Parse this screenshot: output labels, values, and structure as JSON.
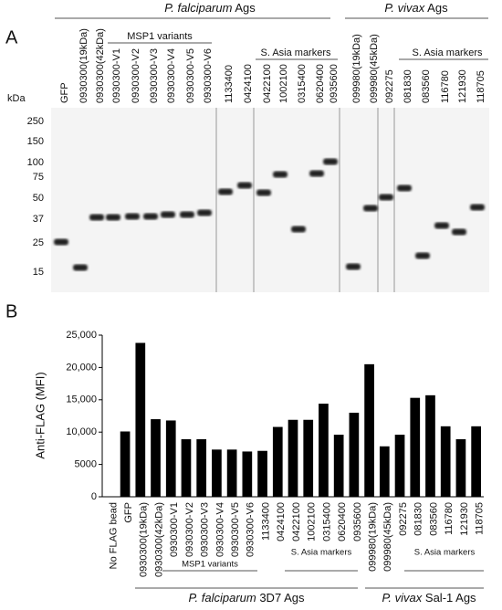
{
  "blot": {
    "panel_label": "A",
    "kda_label": "kDa",
    "kda_markers": [
      "250",
      "150",
      "100",
      "75",
      "50",
      "37",
      "25",
      "15"
    ],
    "lanes": [
      "GFP",
      "0930300(19kDa)",
      "0930300(42kDa)",
      "0930300-V1",
      "0930300-V2",
      "0930300-V3",
      "0930300-V4",
      "0930300-V5",
      "0930300-V6",
      "1133400",
      "0424100",
      "0422100",
      "1002100",
      "0315400",
      "0620400",
      "0935600",
      "099980(19kDa)",
      "099980(45kDa)",
      "092275",
      "081830",
      "083560",
      "116780",
      "121930",
      "118705"
    ],
    "groups": [
      {
        "species": "P. falciparum",
        "suffix": "Ags"
      },
      {
        "species": "P. vivax",
        "suffix": "Ags"
      }
    ],
    "subgroups": [
      "MSP1 variants",
      "S. Asia markers",
      "S. Asia markers"
    ]
  },
  "chart_data": {
    "type": "bar",
    "panel_label": "B",
    "y_label": "Anti-FLAG (MFI)",
    "categories": [
      "No FLAG bead",
      "GFP",
      "0930300(19kDa)",
      "0930300(42kDa)",
      "0930300-V1",
      "0930300-V2",
      "0930300-V3",
      "0930300-V4",
      "0930300-V5",
      "0930300-V6",
      "1133400",
      "0424100",
      "0422100",
      "1002100",
      "0315400",
      "0620400",
      "0935600",
      "099980(19kDa)",
      "099980(45kDa)",
      "092275",
      "081830",
      "083560",
      "116780",
      "121930",
      "118705"
    ],
    "values": [
      50,
      10100,
      23800,
      12000,
      11800,
      8900,
      8900,
      7300,
      7300,
      7000,
      7100,
      10800,
      11900,
      11900,
      14400,
      9600,
      13000,
      20500,
      7800,
      9600,
      15300,
      15700,
      10900,
      8900,
      10900
    ],
    "color": "#000000",
    "ylim": [
      0,
      25000
    ],
    "yticks": [
      0,
      5000,
      {
        "value": 10000,
        "label": "10,000"
      },
      {
        "value": 15000,
        "label": "15,000"
      },
      {
        "value": 20000,
        "label": "20,000"
      },
      {
        "value": 25000,
        "label": "25,000"
      }
    ],
    "subgroups": [
      "MSP1 variants",
      "S. Asia markers",
      "S. Asia markers"
    ],
    "groups": [
      {
        "species": "P. falciparum",
        "suffix": "3D7 Ags"
      },
      {
        "species": "P. vivax",
        "suffix": "Sal-1 Ags"
      }
    ]
  }
}
